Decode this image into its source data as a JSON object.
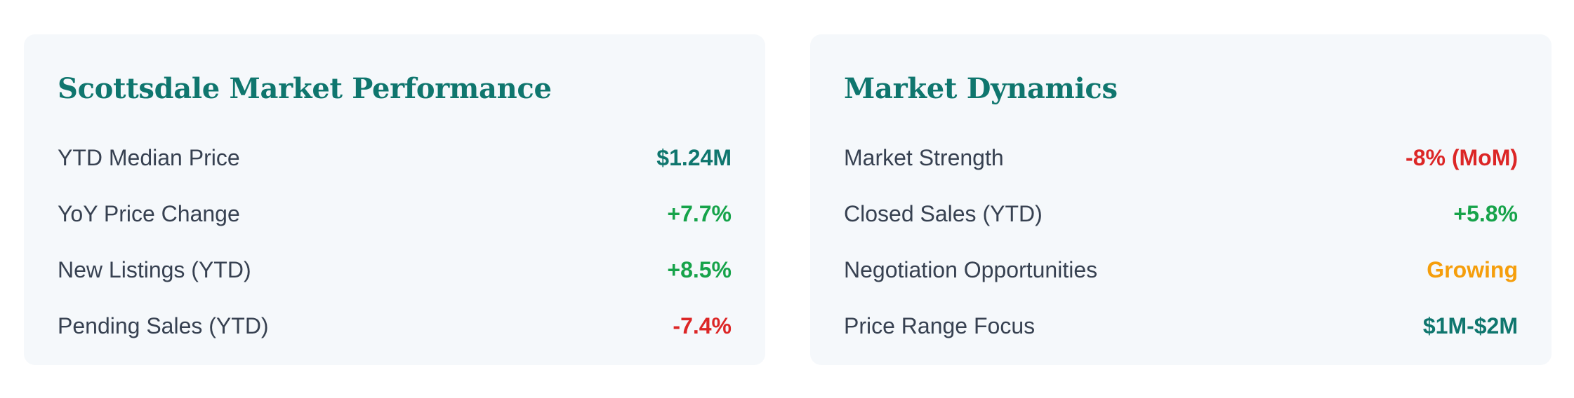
{
  "colors": {
    "title": "#0f766e",
    "label": "#374151",
    "card_bg": "#f5f8fb",
    "teal": "#0f766e",
    "green": "#16a34a",
    "red": "#dc2626",
    "orange": "#f59e0b"
  },
  "performance": {
    "title": "Scottsdale Market Performance",
    "rows": [
      {
        "label": "YTD Median Price",
        "value": "$1.24M",
        "tone": "teal"
      },
      {
        "label": "YoY Price Change",
        "value": "+7.7%",
        "tone": "green"
      },
      {
        "label": "New Listings (YTD)",
        "value": "+8.5%",
        "tone": "green"
      },
      {
        "label": "Pending Sales (YTD)",
        "value": "-7.4%",
        "tone": "red"
      }
    ]
  },
  "dynamics": {
    "title": "Market Dynamics",
    "rows": [
      {
        "label": "Market Strength",
        "value": "-8% (MoM)",
        "tone": "red"
      },
      {
        "label": "Closed Sales (YTD)",
        "value": "+5.8%",
        "tone": "green"
      },
      {
        "label": "Negotiation Opportunities",
        "value": "Growing",
        "tone": "orange"
      },
      {
        "label": "Price Range Focus",
        "value": "$1M-$2M",
        "tone": "teal"
      }
    ]
  }
}
